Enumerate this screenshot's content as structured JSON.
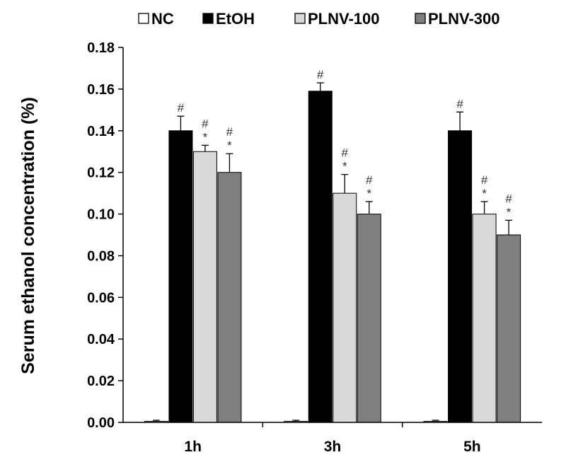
{
  "chart_data": {
    "type": "bar",
    "title": "",
    "xlabel": "",
    "ylabel": "Serum ethanol concentration (%)",
    "ylim": [
      0,
      0.18
    ],
    "yticks": [
      "0.00",
      "0.02",
      "0.04",
      "0.06",
      "0.08",
      "0.10",
      "0.12",
      "0.14",
      "0.16",
      "0.18"
    ],
    "categories": [
      "1h",
      "3h",
      "5h"
    ],
    "legend_position": "top",
    "grid": false,
    "series": [
      {
        "name": "NC",
        "color": "#ffffff",
        "values": [
          0.0005,
          0.0005,
          0.0005
        ],
        "errors": [
          0.0005,
          0.0005,
          0.0005
        ],
        "annotations": [
          [],
          [],
          []
        ]
      },
      {
        "name": "EtOH",
        "color": "#000000",
        "values": [
          0.14,
          0.159,
          0.14
        ],
        "errors": [
          0.007,
          0.004,
          0.009
        ],
        "annotations": [
          [
            "#"
          ],
          [
            "#"
          ],
          [
            "#"
          ]
        ]
      },
      {
        "name": "PLNV-100",
        "color": "#d9d9d9",
        "values": [
          0.13,
          0.11,
          0.1
        ],
        "errors": [
          0.003,
          0.009,
          0.006
        ],
        "annotations": [
          [
            "#",
            "*"
          ],
          [
            "#",
            "*"
          ],
          [
            "#",
            "*"
          ]
        ]
      },
      {
        "name": "PLNV-300",
        "color": "#7f7f7f",
        "values": [
          0.12,
          0.1,
          0.09
        ],
        "errors": [
          0.009,
          0.006,
          0.007
        ],
        "annotations": [
          [
            "#",
            "*"
          ],
          [
            "#",
            "*"
          ],
          [
            "#",
            "*"
          ]
        ]
      }
    ]
  }
}
